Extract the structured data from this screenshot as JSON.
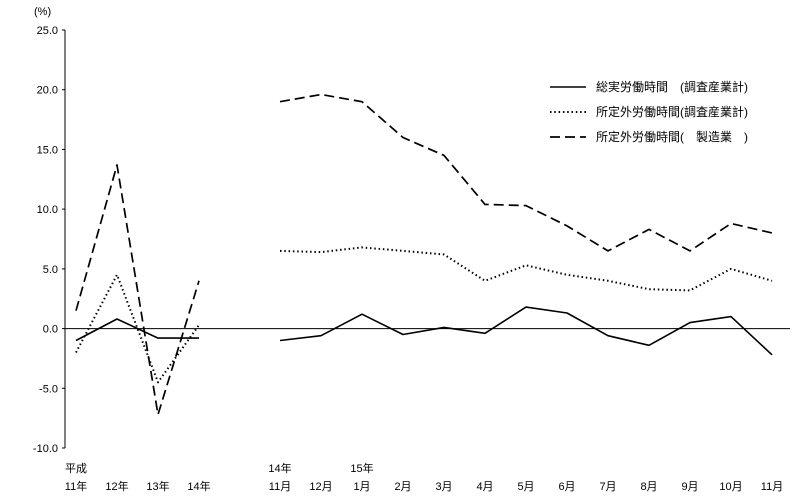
{
  "chart_data": {
    "type": "line",
    "unit_label": "(%)",
    "y_ticks": [
      25,
      20,
      15,
      10,
      5,
      0,
      -5,
      -10
    ],
    "ylim": [
      -10,
      25
    ],
    "grid": false,
    "legend_position": "top-right",
    "legend": [
      {
        "label": "総実労働時間　(調査産業計)",
        "style": "solid",
        "series": "total_hours"
      },
      {
        "label": "所定外労働時間(調査産業計)",
        "style": "dotted",
        "series": "overtime_all_industries"
      },
      {
        "label": "所定外労働時間(　製造業　)",
        "style": "dashed",
        "series": "overtime_manufacturing"
      }
    ],
    "annual_section": {
      "era_label": "平成",
      "categories": [
        "11年",
        "12年",
        "13年",
        "14年"
      ],
      "series": [
        {
          "name": "total_hours",
          "style": "solid",
          "values": [
            -1.0,
            0.8,
            -0.8,
            -0.8
          ]
        },
        {
          "name": "overtime_all_industries",
          "style": "dotted",
          "values": [
            -2.0,
            4.5,
            -4.5,
            0.3
          ]
        },
        {
          "name": "overtime_manufacturing",
          "style": "dashed",
          "values": [
            1.5,
            13.7,
            -7.2,
            4.0
          ]
        }
      ]
    },
    "monthly_section": {
      "year_labels": [
        {
          "label": "14年",
          "month_index": 0
        },
        {
          "label": "15年",
          "month_index": 2
        }
      ],
      "categories": [
        "11月",
        "12月",
        "1月",
        "2月",
        "3月",
        "4月",
        "5月",
        "6月",
        "7月",
        "8月",
        "9月",
        "10月",
        "11月"
      ],
      "series": [
        {
          "name": "total_hours",
          "style": "solid",
          "values": [
            -1.0,
            -0.6,
            1.2,
            -0.5,
            0.1,
            -0.4,
            1.8,
            1.3,
            -0.6,
            -1.4,
            0.5,
            1.0,
            -2.2
          ]
        },
        {
          "name": "overtime_all_industries",
          "style": "dotted",
          "values": [
            6.5,
            6.4,
            6.8,
            6.5,
            6.2,
            4.0,
            5.3,
            4.5,
            4.0,
            3.3,
            3.2,
            5.0,
            4.0
          ]
        },
        {
          "name": "overtime_manufacturing",
          "style": "dashed",
          "values": [
            19.0,
            19.6,
            19.0,
            16.0,
            14.5,
            10.4,
            10.3,
            8.6,
            6.5,
            8.3,
            6.5,
            8.8,
            8.0
          ]
        }
      ]
    }
  }
}
